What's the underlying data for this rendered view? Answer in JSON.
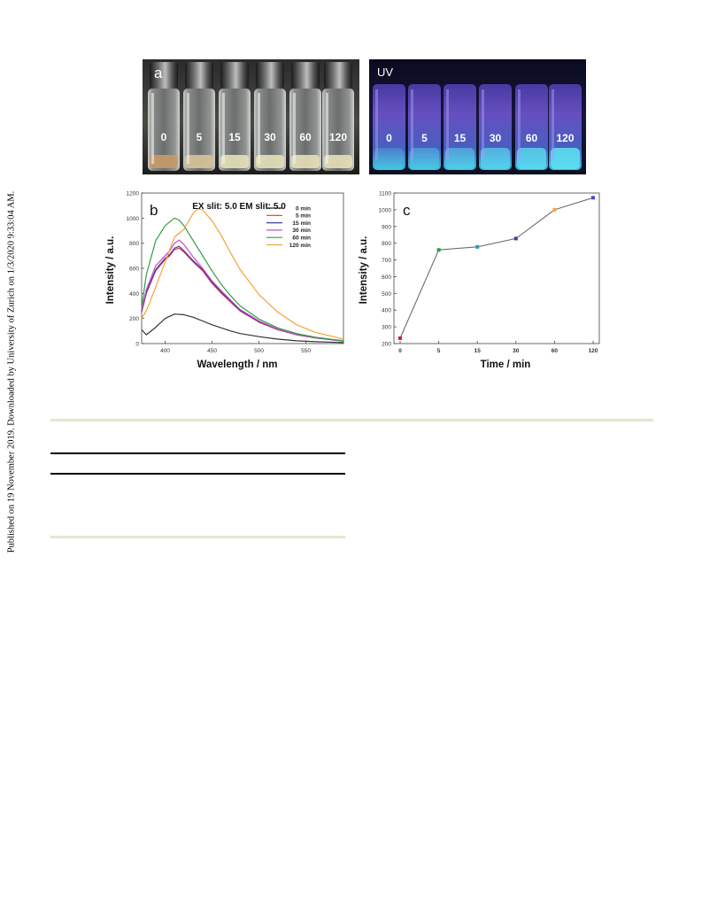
{
  "sidebar_text": "Published on 19 November 2019. Downloaded by University of Zurich on 1/3/2020 9:33:04 AM.",
  "panel_a": {
    "label": "a",
    "vial_labels": [
      "0",
      "5",
      "15",
      "30",
      "60",
      "120"
    ]
  },
  "panel_uv": {
    "label": "UV",
    "vial_labels": [
      "0",
      "5",
      "15",
      "30",
      "60",
      "120"
    ]
  },
  "colors": {
    "0": "#333333",
    "5": "#e8333a",
    "15": "#3a3db0",
    "30": "#c44fc9",
    "60": "#2f9e43",
    "120": "#f5a33b",
    "line_c": "#6e6e6e"
  },
  "chart_data": [
    {
      "panel_label": "b",
      "type": "line",
      "annotation": "EX slit: 5.0 EM slit: 5.0",
      "xlabel": "Wavelength / nm",
      "ylabel": "Intensity / a.u.",
      "xlim": [
        375,
        590
      ],
      "ylim": [
        0,
        1200
      ],
      "xticks": [
        400,
        450,
        500,
        550
      ],
      "yticks": [
        0,
        200,
        400,
        600,
        800,
        1000,
        1200
      ],
      "legend_position": "top-right",
      "series": [
        {
          "name": "0  min",
          "color_key": "0",
          "x": [
            375,
            380,
            390,
            400,
            410,
            420,
            430,
            440,
            450,
            460,
            470,
            480,
            500,
            520,
            540,
            560,
            590
          ],
          "y": [
            110,
            70,
            130,
            200,
            235,
            230,
            210,
            180,
            150,
            125,
            100,
            80,
            55,
            35,
            22,
            15,
            8
          ]
        },
        {
          "name": "5  min",
          "color_key": "5",
          "x": [
            375,
            380,
            390,
            400,
            405,
            410,
            415,
            420,
            430,
            440,
            450,
            460,
            470,
            480,
            500,
            520,
            540,
            560,
            590
          ],
          "y": [
            250,
            400,
            580,
            670,
            700,
            750,
            760,
            730,
            650,
            580,
            480,
            400,
            330,
            260,
            170,
            110,
            70,
            45,
            20
          ]
        },
        {
          "name": "15  min",
          "color_key": "15",
          "x": [
            375,
            380,
            390,
            400,
            405,
            410,
            415,
            420,
            430,
            440,
            450,
            460,
            470,
            480,
            500,
            520,
            540,
            560,
            590
          ],
          "y": [
            260,
            410,
            590,
            680,
            710,
            760,
            775,
            740,
            660,
            590,
            490,
            410,
            335,
            265,
            175,
            112,
            72,
            46,
            20
          ]
        },
        {
          "name": "30  min",
          "color_key": "30",
          "x": [
            375,
            380,
            390,
            400,
            405,
            410,
            415,
            420,
            430,
            440,
            450,
            460,
            470,
            480,
            500,
            520,
            540,
            560,
            590
          ],
          "y": [
            270,
            430,
            620,
            700,
            740,
            800,
            825,
            790,
            690,
            600,
            500,
            420,
            345,
            272,
            180,
            115,
            74,
            47,
            21
          ]
        },
        {
          "name": "60  min",
          "color_key": "60",
          "x": [
            375,
            380,
            390,
            400,
            410,
            415,
            420,
            430,
            440,
            450,
            460,
            470,
            480,
            500,
            520,
            540,
            560,
            590
          ],
          "y": [
            290,
            550,
            820,
            940,
            1000,
            985,
            940,
            820,
            700,
            580,
            470,
            380,
            300,
            195,
            125,
            80,
            50,
            22
          ]
        },
        {
          "name": "120  min",
          "color_key": "120",
          "x": [
            375,
            380,
            390,
            400,
            410,
            420,
            430,
            435,
            440,
            450,
            460,
            470,
            480,
            500,
            520,
            540,
            560,
            590
          ],
          "y": [
            200,
            260,
            450,
            650,
            850,
            910,
            1040,
            1075,
            1065,
            980,
            860,
            720,
            590,
            390,
            250,
            150,
            90,
            35
          ]
        }
      ]
    },
    {
      "panel_label": "c",
      "type": "line",
      "xlabel": "Time / min",
      "ylabel": "Intensity / a.u.",
      "categories": [
        "0",
        "5",
        "15",
        "30",
        "60",
        "120"
      ],
      "values": [
        232,
        760,
        778,
        828,
        1000,
        1072
      ],
      "ylim": [
        200,
        1100
      ],
      "yticks": [
        200,
        300,
        400,
        500,
        600,
        700,
        800,
        900,
        1000,
        1100
      ]
    }
  ]
}
